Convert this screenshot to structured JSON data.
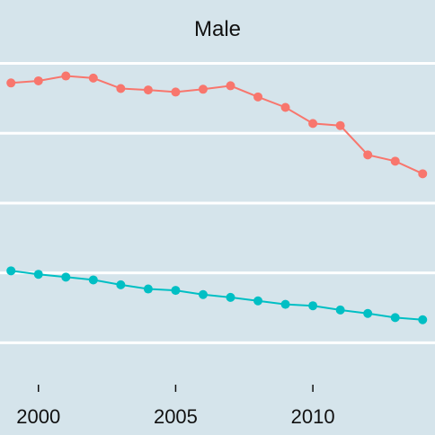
{
  "chart_data": {
    "type": "line",
    "title": "Male",
    "xlabel": "",
    "ylabel": "",
    "x": [
      1999,
      2000,
      2001,
      2002,
      2003,
      2004,
      2005,
      2006,
      2007,
      2008,
      2009,
      2010,
      2011,
      2012,
      2013,
      2014
    ],
    "x_ticks": [
      2000,
      2005,
      2010
    ],
    "y_gridlines": [
      1,
      2,
      3,
      4,
      5
    ],
    "ylim": [
      0.4,
      5.2
    ],
    "xlim": [
      1998.6,
      2014.45
    ],
    "grid": true,
    "series": [
      {
        "color": "#f8766d",
        "values": [
          4.72,
          4.75,
          4.82,
          4.79,
          4.64,
          4.62,
          4.59,
          4.63,
          4.68,
          4.52,
          4.37,
          4.14,
          4.11,
          3.69,
          3.6,
          3.42
        ]
      },
      {
        "color": "#00bfc4",
        "values": [
          2.03,
          1.98,
          1.94,
          1.9,
          1.83,
          1.77,
          1.75,
          1.69,
          1.65,
          1.6,
          1.55,
          1.53,
          1.47,
          1.42,
          1.36,
          1.33
        ]
      }
    ]
  }
}
